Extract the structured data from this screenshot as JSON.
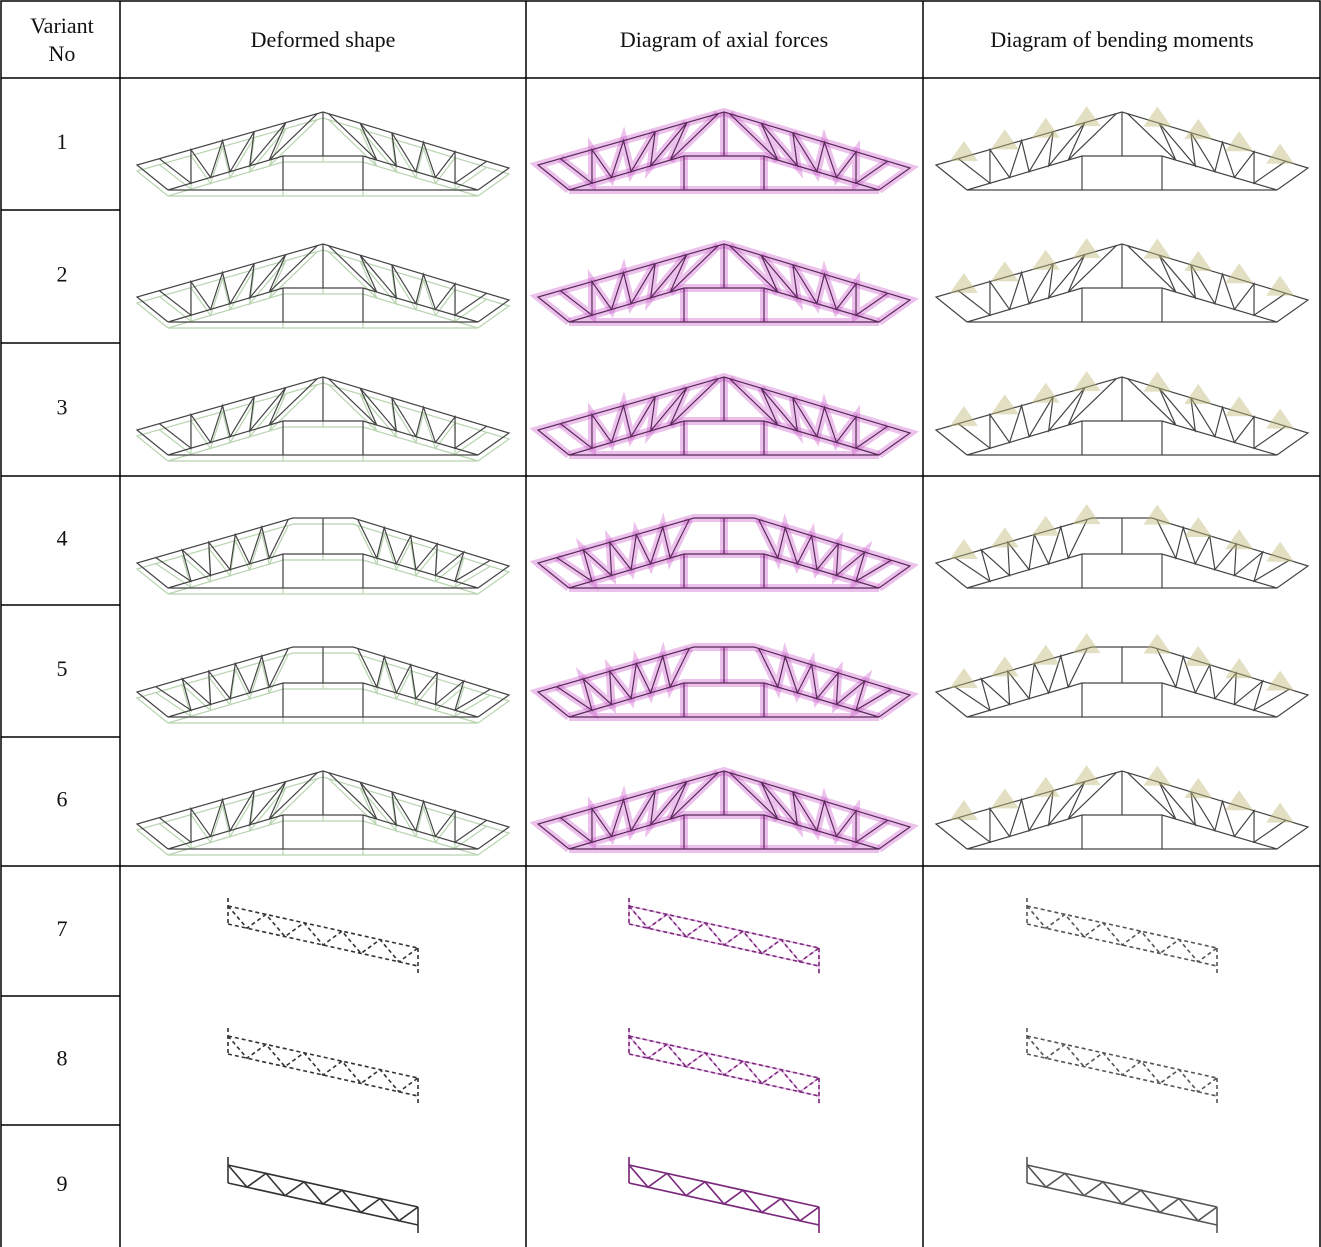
{
  "header": {
    "variant_label": [
      "Variant",
      "No"
    ],
    "columns": [
      "Deformed shape",
      "Diagram of axial forces",
      "Diagram of bending moments"
    ]
  },
  "rows": [
    1,
    2,
    3,
    4,
    5,
    6,
    7,
    8,
    9
  ]
}
